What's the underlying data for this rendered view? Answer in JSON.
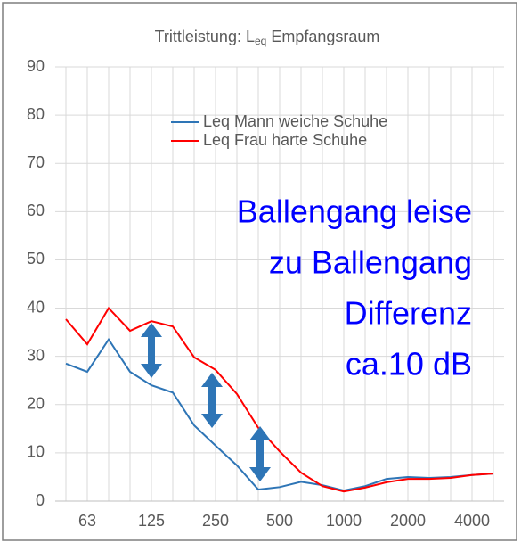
{
  "chart_data": {
    "type": "line",
    "title": "Trittleistung: L",
    "title_subscript": "eq",
    "title_suffix": "Empfangsraum",
    "categories": [
      null,
      "63",
      null,
      null,
      "125",
      null,
      null,
      "250",
      null,
      null,
      "500",
      null,
      null,
      "1000",
      null,
      null,
      "2000",
      null,
      null,
      "4000",
      null
    ],
    "series": [
      {
        "name": "Leq Mann weiche Schuhe",
        "color": "#2e75b6",
        "values": [
          28.5,
          26.8,
          33.5,
          26.8,
          24,
          22.5,
          15.7,
          11.5,
          7.4,
          2.4,
          2.9,
          4,
          3.3,
          2.2,
          3.1,
          4.6,
          5,
          4.8,
          5,
          5.4,
          5.7
        ]
      },
      {
        "name": "Leq Frau harte Schuhe",
        "color": "#ff0000",
        "values": [
          37.7,
          32.5,
          40,
          35.3,
          37.3,
          36.2,
          29.8,
          27.2,
          22.2,
          15.2,
          10.3,
          5.9,
          3.1,
          2,
          2.8,
          3.9,
          4.6,
          4.6,
          4.8,
          5.4,
          5.7
        ]
      }
    ],
    "ylim": [
      0,
      90
    ],
    "yticks": [
      0,
      10,
      20,
      30,
      40,
      50,
      60,
      70,
      80,
      90
    ],
    "grid": true,
    "annotation": [
      "Ballengang leise",
      "zu Ballengang",
      "Differenz",
      "ca.10 dB"
    ],
    "annotation_color": "#0000ff"
  }
}
